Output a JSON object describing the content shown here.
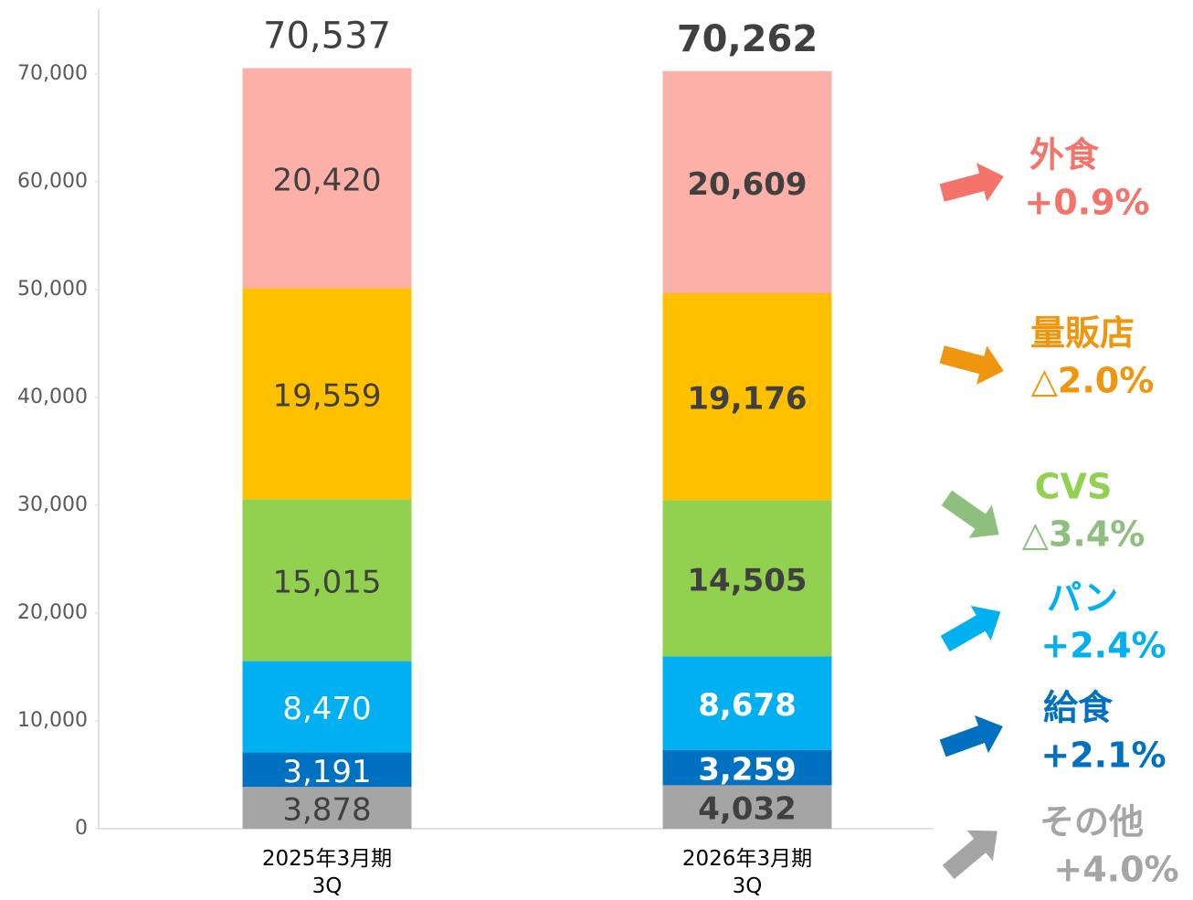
{
  "chart_data": {
    "type": "stacked_bar",
    "categories": [
      "2025年3月期\n3Q",
      "2026年3月期\n3Q"
    ],
    "series": [
      {
        "name": "その他",
        "change": "+4.0%",
        "color": "#a5a5a5",
        "values": [
          3878,
          4032
        ],
        "value_labels": [
          "3,878",
          "4,032"
        ]
      },
      {
        "name": "給食",
        "change": "+2.1%",
        "color": "#0070c0",
        "values": [
          3191,
          3259
        ],
        "value_labels": [
          "3,191",
          "3,259"
        ]
      },
      {
        "name": "パン",
        "change": "+2.4%",
        "color": "#00b0f0",
        "values": [
          8470,
          8678
        ],
        "value_labels": [
          "8,470",
          "8,678"
        ]
      },
      {
        "name": "CVS",
        "change": "△3.4%",
        "color": "#92d050",
        "values": [
          15015,
          14505
        ],
        "value_labels": [
          "15,015",
          "14,505"
        ]
      },
      {
        "name": "量販店",
        "change": "△2.0%",
        "color": "#ffc000",
        "values": [
          19559,
          19176
        ],
        "value_labels": [
          "19,559",
          "19,176"
        ]
      },
      {
        "name": "外食",
        "change": "+0.9%",
        "color": "#fdb0a8",
        "values": [
          20420,
          20609
        ],
        "value_labels": [
          "20,420",
          "20,609"
        ]
      }
    ],
    "totals": [
      70537,
      70262
    ],
    "total_labels": [
      "70,537",
      "70,262"
    ],
    "ylim": [
      0,
      76000
    ],
    "yticks": [
      0,
      {
        "value": 10000,
        "label": "10,000"
      },
      {
        "value": 20000,
        "label": "20,000"
      },
      {
        "value": 30000,
        "label": "30,000"
      },
      {
        "value": 40000,
        "label": "40,000"
      },
      {
        "value": 50000,
        "label": "50,000"
      },
      {
        "value": 60000,
        "label": "60,000"
      },
      {
        "value": 70000,
        "label": "70,000"
      }
    ]
  }
}
